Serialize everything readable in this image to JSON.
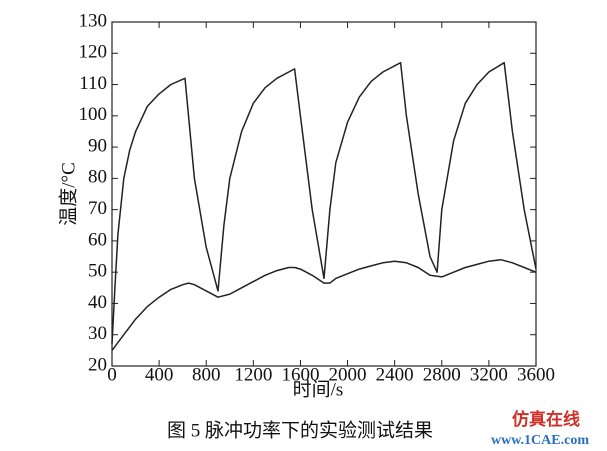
{
  "chart_data": {
    "type": "line",
    "caption": "图 5  脉冲功率下的实验测试结果",
    "xlabel": "时间/s",
    "ylabel": "温度/°C",
    "xlim": [
      0,
      3600
    ],
    "xticks": [
      0,
      400,
      800,
      1200,
      1600,
      2000,
      2400,
      2800,
      3200,
      3600
    ],
    "ylim": [
      20,
      130
    ],
    "yticks": [
      20,
      30,
      40,
      50,
      60,
      70,
      80,
      90,
      100,
      110,
      120,
      130
    ],
    "series": [
      {
        "color": "#222222",
        "x": [
          0,
          25,
          50,
          100,
          150,
          200,
          300,
          400,
          500,
          620,
          700,
          800,
          900,
          950,
          1000,
          1100,
          1200,
          1300,
          1400,
          1550,
          1600,
          1700,
          1800,
          1850,
          1900,
          2000,
          2100,
          2200,
          2300,
          2450,
          2500,
          2600,
          2700,
          2760,
          2800,
          2900,
          3000,
          3100,
          3200,
          3330,
          3400,
          3500,
          3600
        ],
        "values": [
          27,
          45,
          62,
          80,
          89,
          95,
          103,
          107,
          110,
          112,
          80,
          58,
          44,
          65,
          80,
          95,
          104,
          109,
          112,
          115,
          100,
          70,
          48,
          70,
          85,
          98,
          106,
          111,
          114,
          117,
          100,
          75,
          55,
          50,
          70,
          92,
          104,
          110,
          114,
          117,
          95,
          70,
          51
        ]
      },
      {
        "color": "#222222",
        "x": [
          0,
          100,
          200,
          300,
          400,
          500,
          600,
          650,
          700,
          800,
          900,
          1000,
          1100,
          1200,
          1300,
          1400,
          1500,
          1550,
          1600,
          1700,
          1800,
          1850,
          1900,
          2000,
          2100,
          2200,
          2300,
          2400,
          2500,
          2600,
          2700,
          2800,
          2900,
          3000,
          3100,
          3200,
          3300,
          3400,
          3500,
          3600
        ],
        "values": [
          25,
          30,
          35,
          39,
          42,
          44.5,
          46,
          46.5,
          46,
          44,
          42,
          43,
          45,
          47,
          49,
          50.5,
          51.5,
          51.5,
          51,
          49,
          46.5,
          46.5,
          48,
          49.5,
          51,
          52,
          53,
          53.5,
          53,
          51.5,
          49,
          48.5,
          50,
          51.5,
          52.5,
          53.5,
          54,
          53,
          51.5,
          50
        ]
      }
    ]
  },
  "watermarks": [
    "仿真在线",
    "www.1CAE.com"
  ]
}
